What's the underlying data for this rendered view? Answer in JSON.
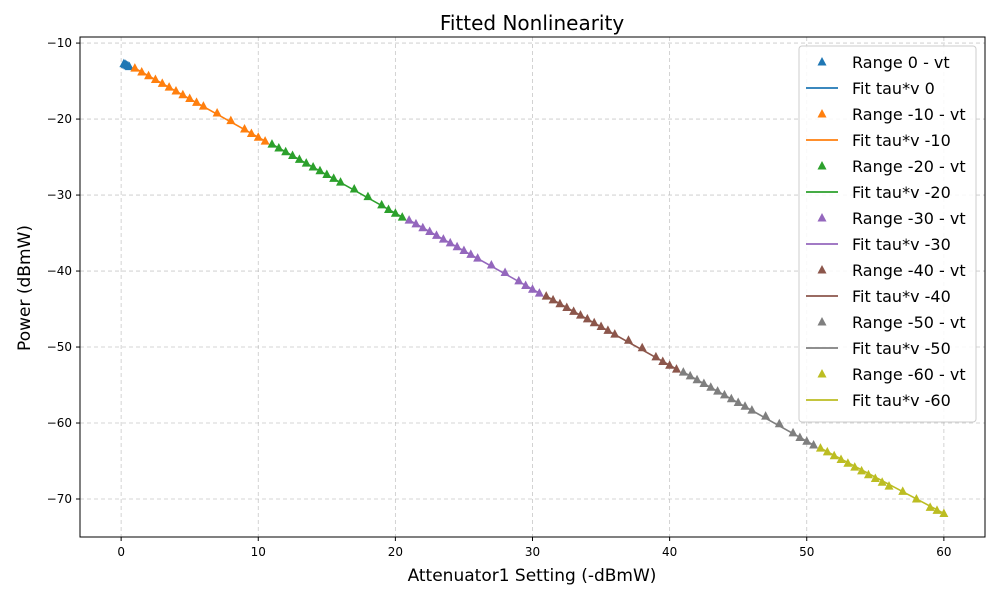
{
  "chart_data": {
    "type": "scatter",
    "title": "Fitted Nonlinearity",
    "xlabel": "Attenuator1 Setting (-dBmW)",
    "ylabel": "Power (dBmW)",
    "xlim": [
      -3,
      63
    ],
    "ylim": [
      -75,
      -9.2
    ],
    "xticks": [
      0,
      10,
      20,
      30,
      40,
      50,
      60
    ],
    "yticks": [
      -10,
      -20,
      -30,
      -40,
      -50,
      -60,
      -70
    ],
    "grid": true,
    "legend_position": "top-right",
    "series": [
      {
        "range": 0,
        "color": "#1f77b4",
        "points": [
          [
            0.2,
            -12.7
          ],
          [
            0.3,
            -12.8
          ],
          [
            0.4,
            -12.9
          ],
          [
            0.5,
            -13.0
          ],
          [
            0.6,
            -13.1
          ]
        ],
        "fit": [
          [
            0.2,
            -12.7
          ],
          [
            0.6,
            -13.1
          ]
        ]
      },
      {
        "range": -10,
        "color": "#ff7f0e",
        "points": [
          [
            1.0,
            -13.3
          ],
          [
            1.5,
            -13.8
          ],
          [
            2.0,
            -14.3
          ],
          [
            2.5,
            -14.8
          ],
          [
            3.0,
            -15.3
          ],
          [
            3.5,
            -15.8
          ],
          [
            4.0,
            -16.3
          ],
          [
            4.5,
            -16.8
          ],
          [
            5.0,
            -17.3
          ],
          [
            5.5,
            -17.8
          ],
          [
            6.0,
            -18.3
          ],
          [
            7.0,
            -19.2
          ],
          [
            8.0,
            -20.2
          ],
          [
            9.0,
            -21.3
          ],
          [
            9.5,
            -21.9
          ],
          [
            10.0,
            -22.4
          ],
          [
            10.5,
            -22.9
          ]
        ],
        "fit": [
          [
            1.0,
            -13.3
          ],
          [
            10.5,
            -22.9
          ]
        ]
      },
      {
        "range": -20,
        "color": "#2ca02c",
        "points": [
          [
            11.0,
            -23.3
          ],
          [
            11.5,
            -23.8
          ],
          [
            12.0,
            -24.3
          ],
          [
            12.5,
            -24.8
          ],
          [
            13.0,
            -25.3
          ],
          [
            13.5,
            -25.8
          ],
          [
            14.0,
            -26.3
          ],
          [
            14.5,
            -26.8
          ],
          [
            15.0,
            -27.3
          ],
          [
            15.5,
            -27.8
          ],
          [
            16.0,
            -28.3
          ],
          [
            17.0,
            -29.2
          ],
          [
            18.0,
            -30.2
          ],
          [
            19.0,
            -31.3
          ],
          [
            19.5,
            -31.9
          ],
          [
            20.0,
            -32.4
          ],
          [
            20.5,
            -32.9
          ]
        ],
        "fit": [
          [
            11.0,
            -23.3
          ],
          [
            20.5,
            -32.9
          ]
        ]
      },
      {
        "range": -30,
        "color": "#9467bd",
        "points": [
          [
            21.0,
            -33.3
          ],
          [
            21.5,
            -33.8
          ],
          [
            22.0,
            -34.3
          ],
          [
            22.5,
            -34.8
          ],
          [
            23.0,
            -35.3
          ],
          [
            23.5,
            -35.8
          ],
          [
            24.0,
            -36.3
          ],
          [
            24.5,
            -36.8
          ],
          [
            25.0,
            -37.3
          ],
          [
            25.5,
            -37.8
          ],
          [
            26.0,
            -38.3
          ],
          [
            27.0,
            -39.2
          ],
          [
            28.0,
            -40.2
          ],
          [
            29.0,
            -41.3
          ],
          [
            29.5,
            -41.9
          ],
          [
            30.0,
            -42.4
          ],
          [
            30.5,
            -42.9
          ]
        ],
        "fit": [
          [
            21.0,
            -33.3
          ],
          [
            30.5,
            -42.9
          ]
        ]
      },
      {
        "range": -40,
        "color": "#8c564b",
        "points": [
          [
            31.0,
            -43.3
          ],
          [
            31.5,
            -43.8
          ],
          [
            32.0,
            -44.3
          ],
          [
            32.5,
            -44.8
          ],
          [
            33.0,
            -45.3
          ],
          [
            33.5,
            -45.8
          ],
          [
            34.0,
            -46.3
          ],
          [
            34.5,
            -46.8
          ],
          [
            35.0,
            -47.3
          ],
          [
            35.5,
            -47.8
          ],
          [
            36.0,
            -48.3
          ],
          [
            37.0,
            -49.1
          ],
          [
            38.0,
            -50.1
          ],
          [
            39.0,
            -51.3
          ],
          [
            39.5,
            -51.9
          ],
          [
            40.0,
            -52.4
          ],
          [
            40.5,
            -52.9
          ]
        ],
        "fit": [
          [
            31.0,
            -43.3
          ],
          [
            40.5,
            -52.9
          ]
        ]
      },
      {
        "range": -50,
        "color": "#7f7f7f",
        "points": [
          [
            41.0,
            -53.3
          ],
          [
            41.5,
            -53.8
          ],
          [
            42.0,
            -54.3
          ],
          [
            42.5,
            -54.8
          ],
          [
            43.0,
            -55.3
          ],
          [
            43.5,
            -55.8
          ],
          [
            44.0,
            -56.3
          ],
          [
            44.5,
            -56.8
          ],
          [
            45.0,
            -57.3
          ],
          [
            45.5,
            -57.8
          ],
          [
            46.0,
            -58.3
          ],
          [
            47.0,
            -59.1
          ],
          [
            48.0,
            -60.1
          ],
          [
            49.0,
            -61.3
          ],
          [
            49.5,
            -61.9
          ],
          [
            50.0,
            -62.4
          ],
          [
            50.5,
            -62.9
          ]
        ],
        "fit": [
          [
            41.0,
            -53.3
          ],
          [
            50.5,
            -62.9
          ]
        ]
      },
      {
        "range": -60,
        "color": "#bcbd22",
        "points": [
          [
            51.0,
            -63.3
          ],
          [
            51.5,
            -63.8
          ],
          [
            52.0,
            -64.3
          ],
          [
            52.5,
            -64.8
          ],
          [
            53.0,
            -65.3
          ],
          [
            53.5,
            -65.8
          ],
          [
            54.0,
            -66.3
          ],
          [
            54.5,
            -66.8
          ],
          [
            55.0,
            -67.3
          ],
          [
            55.5,
            -67.8
          ],
          [
            56.0,
            -68.3
          ],
          [
            57.0,
            -69.0
          ],
          [
            58.0,
            -70.0
          ],
          [
            59.0,
            -71.1
          ],
          [
            59.5,
            -71.5
          ],
          [
            60.0,
            -71.9
          ]
        ],
        "fit": [
          [
            51.0,
            -63.3
          ],
          [
            60.0,
            -71.9
          ]
        ]
      }
    ],
    "legend": [
      {
        "label": "Range 0 - vt",
        "kind": "marker",
        "color": "#1f77b4"
      },
      {
        "label": "Fit tau*v 0",
        "kind": "line",
        "color": "#1f77b4"
      },
      {
        "label": "Range -10 - vt",
        "kind": "marker",
        "color": "#ff7f0e"
      },
      {
        "label": "Fit tau*v -10",
        "kind": "line",
        "color": "#ff7f0e"
      },
      {
        "label": "Range -20 - vt",
        "kind": "marker",
        "color": "#2ca02c"
      },
      {
        "label": "Fit tau*v -20",
        "kind": "line",
        "color": "#2ca02c"
      },
      {
        "label": "Range -30 - vt",
        "kind": "marker",
        "color": "#9467bd"
      },
      {
        "label": "Fit tau*v -30",
        "kind": "line",
        "color": "#9467bd"
      },
      {
        "label": "Range -40 - vt",
        "kind": "marker",
        "color": "#8c564b"
      },
      {
        "label": "Fit tau*v -40",
        "kind": "line",
        "color": "#8c564b"
      },
      {
        "label": "Range -50 - vt",
        "kind": "marker",
        "color": "#7f7f7f"
      },
      {
        "label": "Fit tau*v -50",
        "kind": "line",
        "color": "#7f7f7f"
      },
      {
        "label": "Range -60 - vt",
        "kind": "marker",
        "color": "#bcbd22"
      },
      {
        "label": "Fit tau*v -60",
        "kind": "line",
        "color": "#bcbd22"
      }
    ]
  }
}
